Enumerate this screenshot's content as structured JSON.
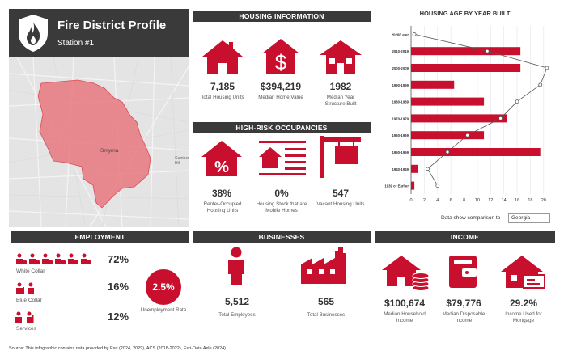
{
  "header": {
    "title": "Fire District Profile",
    "subtitle": "Station #1"
  },
  "map": {
    "label_smyrna": "Smyrna",
    "label_edge": "Cumber\nHill"
  },
  "housing": {
    "header": "HOUSING INFORMATION",
    "items": [
      {
        "value": "7,185",
        "label": "Total Housing Units"
      },
      {
        "value": "$394,219",
        "label": "Median Home Value"
      },
      {
        "value": "1982",
        "label": "Median Year Structure Built"
      }
    ]
  },
  "risk": {
    "header": "HIGH-RISK OCCUPANCIES",
    "items": [
      {
        "value": "38%",
        "label": "Renter-Occupied Housing Units"
      },
      {
        "value": "0%",
        "label": "Housing Stock that are Mobile Homes"
      },
      {
        "value": "547",
        "label": "Vacant Housing Units"
      }
    ]
  },
  "chart_data": {
    "type": "bar",
    "title": "HOUSING AGE BY YEAR BUILT",
    "categories": [
      "2020/Later",
      "2010-2019",
      "2000-2009",
      "1990-1999",
      "1980-1989",
      "1970-1979",
      "1960-1969",
      "1950-1959",
      "1940-1949",
      "1939 or Earlier"
    ],
    "series": [
      {
        "values": [
          0,
          16.5,
          16.5,
          6.5,
          11,
          14.5,
          11,
          19.5,
          1,
          0.5
        ]
      },
      {
        "values": [
          0.5,
          11.5,
          20.5,
          19.5,
          16,
          13.5,
          8.5,
          5.5,
          2.5,
          4
        ]
      }
    ],
    "xticks": [
      "0",
      "2",
      "4",
      "6",
      "8",
      "10",
      "12",
      "14",
      "16",
      "18",
      "20"
    ],
    "xlim": [
      0,
      21
    ],
    "compare_label": "Data show comparison to",
    "compare_value": "Georgia"
  },
  "employment": {
    "header": "EMPLOYMENT",
    "rows": [
      {
        "label": "White Collar",
        "value": "72%"
      },
      {
        "label": "Blue Collar",
        "value": "16%"
      },
      {
        "label": "Services",
        "value": "12%"
      }
    ],
    "unemployment": {
      "value": "2.5%",
      "label": "Unemployment Rate"
    }
  },
  "businesses": {
    "header": "BUSINESSES",
    "items": [
      {
        "value": "5,512",
        "label": "Total Employees"
      },
      {
        "value": "565",
        "label": "Total Businesses"
      }
    ]
  },
  "income": {
    "header": "INCOME",
    "items": [
      {
        "value": "$100,674",
        "label": "Median Household Income"
      },
      {
        "value": "$79,776",
        "label": "Median Disposable Income"
      },
      {
        "value": "29.2%",
        "label": "Income Used for Mortgage"
      }
    ]
  },
  "source": "Source: This infographic contains data provided by Esri (2024, 2029), ACS (2018-2022), Esri-Data Axle (2024)."
}
